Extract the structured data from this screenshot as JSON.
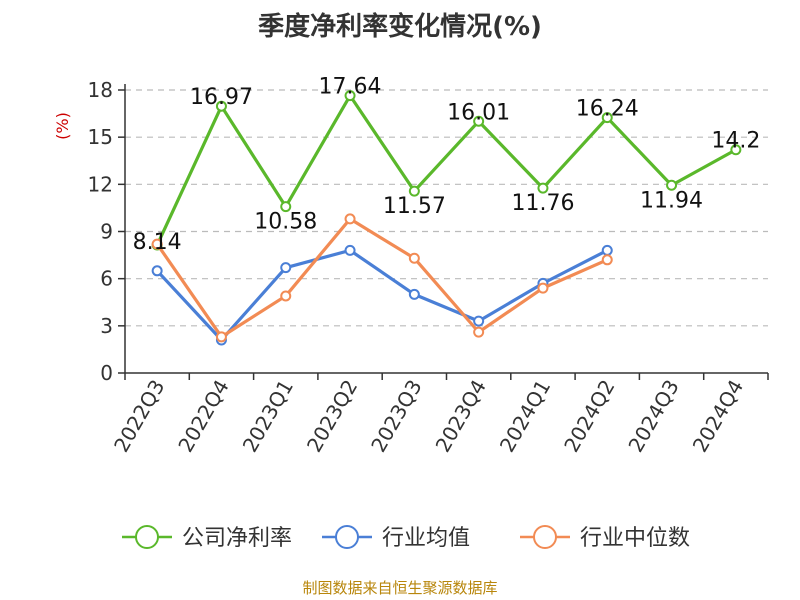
{
  "title": "季度净利率变化情况(%)",
  "source": "制图数据来自恒生聚源数据库",
  "chart_data": {
    "type": "line",
    "title": "季度净利率变化情况(%)",
    "ylabel": "(%)",
    "ylim": [
      0,
      18
    ],
    "yticks": [
      0,
      3,
      6,
      9,
      12,
      15,
      18
    ],
    "grid": true,
    "legend_position": "bottom",
    "categories": [
      "2022Q3",
      "2022Q4",
      "2023Q1",
      "2023Q2",
      "2023Q3",
      "2023Q4",
      "2024Q1",
      "2024Q2",
      "2024Q3",
      "2024Q4"
    ],
    "series": [
      {
        "name": "公司净利率",
        "color": "#5ab82b",
        "values": [
          8.14,
          16.97,
          10.58,
          17.64,
          11.57,
          16.01,
          11.76,
          16.24,
          11.94,
          14.2
        ],
        "labels": [
          "8.14",
          "16.97",
          "10.58",
          "17.64",
          "11.57",
          "16.01",
          "11.76",
          "16.24",
          "11.94",
          "14.2"
        ]
      },
      {
        "name": "行业均值",
        "color": "#4a7fd6",
        "values": [
          6.5,
          2.1,
          6.7,
          7.8,
          5.0,
          3.3,
          5.7,
          7.8,
          null,
          null
        ]
      },
      {
        "name": "行业中位数",
        "color": "#f28b54",
        "values": [
          8.2,
          2.3,
          4.9,
          9.8,
          7.3,
          2.6,
          5.4,
          7.2,
          null,
          null
        ]
      }
    ]
  }
}
